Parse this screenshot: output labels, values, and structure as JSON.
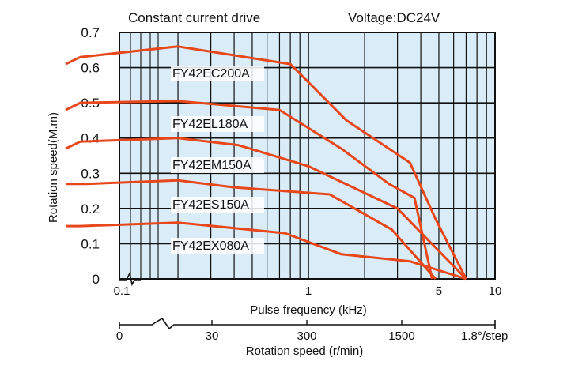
{
  "header": {
    "left": "Constant current drive",
    "right": "Voltage:DC24V"
  },
  "chart_data": {
    "type": "line",
    "ylabel": "Rotation speed(M.m)",
    "xlabel": "Pulse frequency  (kHz)",
    "x_scale": "log",
    "xlim": [
      0.01,
      10
    ],
    "ylim": [
      0,
      0.7
    ],
    "y_ticks": [
      "0.7",
      "0.6",
      "0.5",
      "0.4",
      "0.3",
      "0.2",
      "0.1",
      "0"
    ],
    "x_ticks": [
      "0.1",
      "1",
      "5",
      "10"
    ],
    "grid": true,
    "series": [
      {
        "name": "FY42EC200A",
        "points": [
          [
            0.05,
            0.61
          ],
          [
            0.06,
            0.63
          ],
          [
            0.2,
            0.66
          ],
          [
            0.8,
            0.61
          ],
          [
            1.6,
            0.45
          ],
          [
            3.5,
            0.33
          ],
          [
            4.8,
            0.17
          ],
          [
            7,
            0
          ]
        ]
      },
      {
        "name": "FY42EL180A",
        "points": [
          [
            0.05,
            0.48
          ],
          [
            0.06,
            0.5
          ],
          [
            0.2,
            0.505
          ],
          [
            0.7,
            0.48
          ],
          [
            1.5,
            0.37
          ],
          [
            2.7,
            0.27
          ],
          [
            3.7,
            0.23
          ],
          [
            4.6,
            0
          ]
        ]
      },
      {
        "name": "FY42EM150A",
        "points": [
          [
            0.05,
            0.37
          ],
          [
            0.06,
            0.39
          ],
          [
            0.2,
            0.4
          ],
          [
            0.42,
            0.38
          ],
          [
            1.0,
            0.32
          ],
          [
            3.0,
            0.2
          ],
          [
            7,
            0
          ]
        ]
      },
      {
        "name": "FY42ES150A",
        "points": [
          [
            0.05,
            0.27
          ],
          [
            0.065,
            0.27
          ],
          [
            0.2,
            0.28
          ],
          [
            0.4,
            0.26
          ],
          [
            1.3,
            0.24
          ],
          [
            2.8,
            0.14
          ],
          [
            4.8,
            0
          ]
        ]
      },
      {
        "name": "FY42EX080A",
        "points": [
          [
            0.05,
            0.15
          ],
          [
            0.06,
            0.15
          ],
          [
            0.2,
            0.16
          ],
          [
            0.75,
            0.13
          ],
          [
            1.5,
            0.07
          ],
          [
            3.5,
            0.05
          ],
          [
            7,
            0
          ]
        ]
      }
    ],
    "secondary_axis": {
      "label": "Rotation speed (r/min)",
      "ticks": [
        "0",
        "30",
        "300",
        "1500"
      ],
      "step_note": "1.8°/step"
    },
    "line_color": "#e8471c",
    "plot_background": "#d9ecf7"
  }
}
